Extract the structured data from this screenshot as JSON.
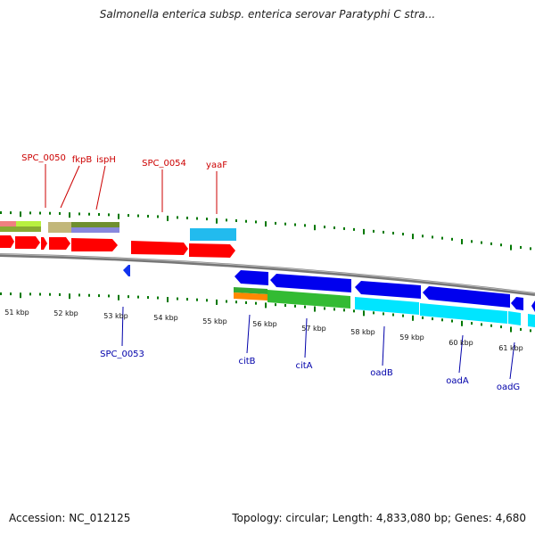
{
  "title": "Salmonella enterica subsp. enterica serovar Paratyphi C stra...",
  "footer": {
    "accession": "Accession: NC_012125",
    "summary": "Topology: circular; Length: 4,833,080 bp; Genes: 4,680"
  },
  "colors": {
    "forward_label": "#cc0000",
    "reverse_label": "#0000aa",
    "tick": "#007700",
    "backbone": "#808080",
    "forward_gene": "#ff0000",
    "reverse_gene": "#0000ee",
    "cyan": "#00e5ff",
    "green": "#33bb33"
  },
  "scale_labels": [
    "51 kbp",
    "52 kbp",
    "53 kbp",
    "54 kbp",
    "55 kbp",
    "56 kbp",
    "57 kbp",
    "58 kbp",
    "59 kbp",
    "60 kbp",
    "61 kbp"
  ],
  "forward_genes": [
    "SPC_0050",
    "fkpB",
    "ispH",
    "SPC_0054",
    "yaaF"
  ],
  "reverse_genes": [
    "SPC_0053",
    "citB",
    "citA",
    "oadB",
    "oadA",
    "oadG"
  ]
}
